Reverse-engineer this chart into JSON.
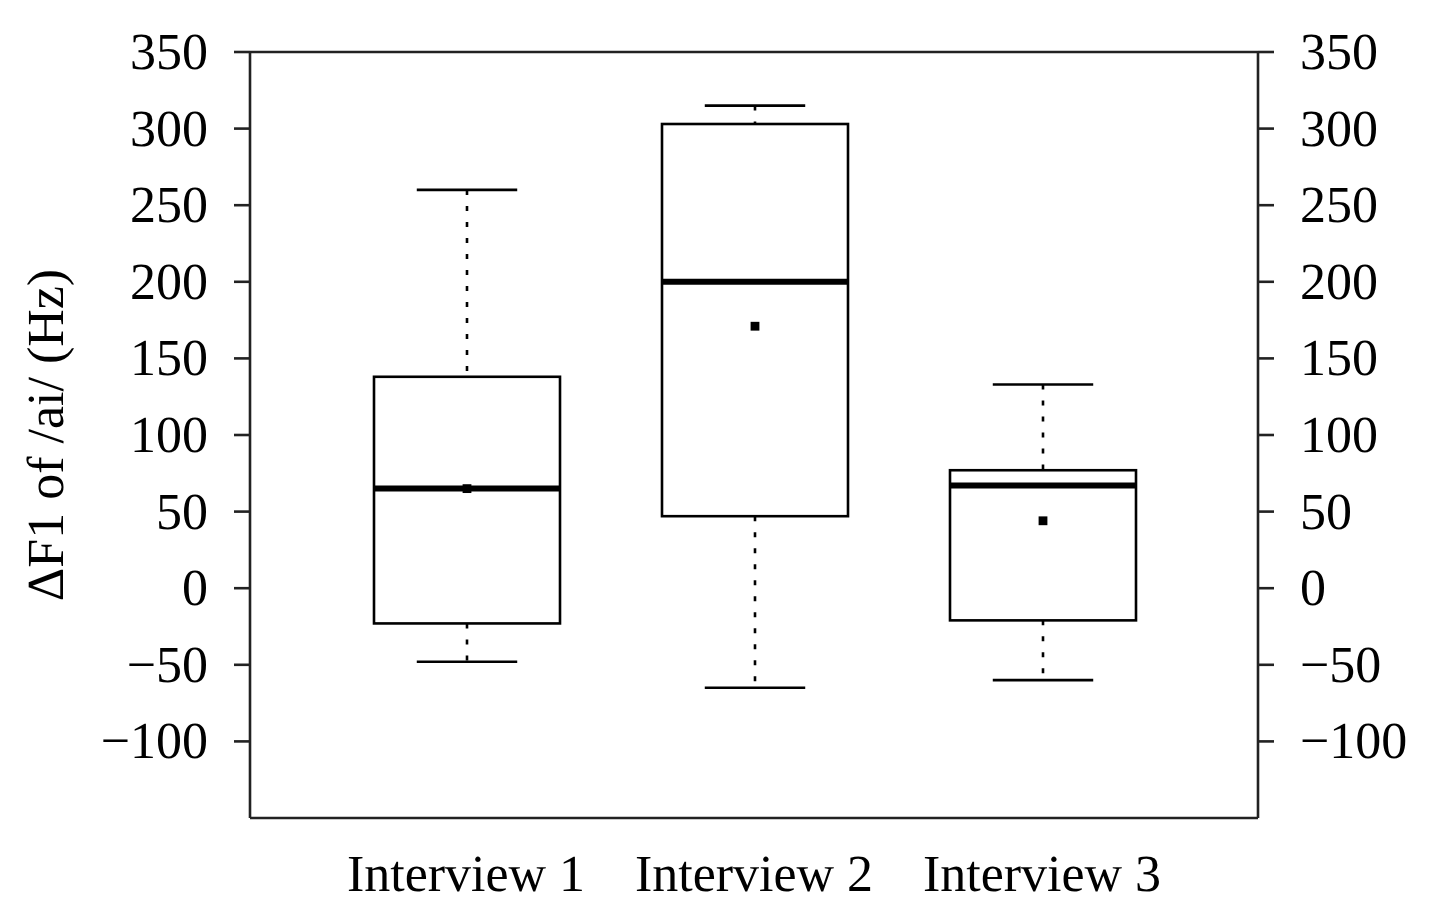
{
  "chart_data": {
    "type": "box",
    "ylabel": "ΔF1 of /ai/ (Hz)",
    "categories": [
      "Interview 1",
      "Interview 2",
      "Interview 3"
    ],
    "boxes": [
      {
        "low": -48,
        "q1": -23,
        "median": 65,
        "q3": 138,
        "high": 260,
        "mean": 65
      },
      {
        "low": -65,
        "q1": 47,
        "median": 200,
        "q3": 303,
        "high": 315,
        "mean": 171
      },
      {
        "low": -60,
        "q1": -21,
        "median": 67,
        "q3": 77,
        "high": 133,
        "mean": 44
      }
    ],
    "color": "#000000",
    "ylim": [
      -150,
      350
    ],
    "yticks": [
      {
        "value": -100,
        "label": "−100"
      },
      {
        "value": -50,
        "label": "−50"
      },
      0,
      50,
      100,
      150,
      200,
      250,
      300,
      350
    ],
    "y2lim": [
      -150,
      350
    ],
    "y2ticks": [
      {
        "value": -100,
        "label": "−100"
      },
      {
        "value": -50,
        "label": "−50"
      },
      0,
      50,
      100,
      150,
      200,
      250,
      300,
      350
    ]
  }
}
